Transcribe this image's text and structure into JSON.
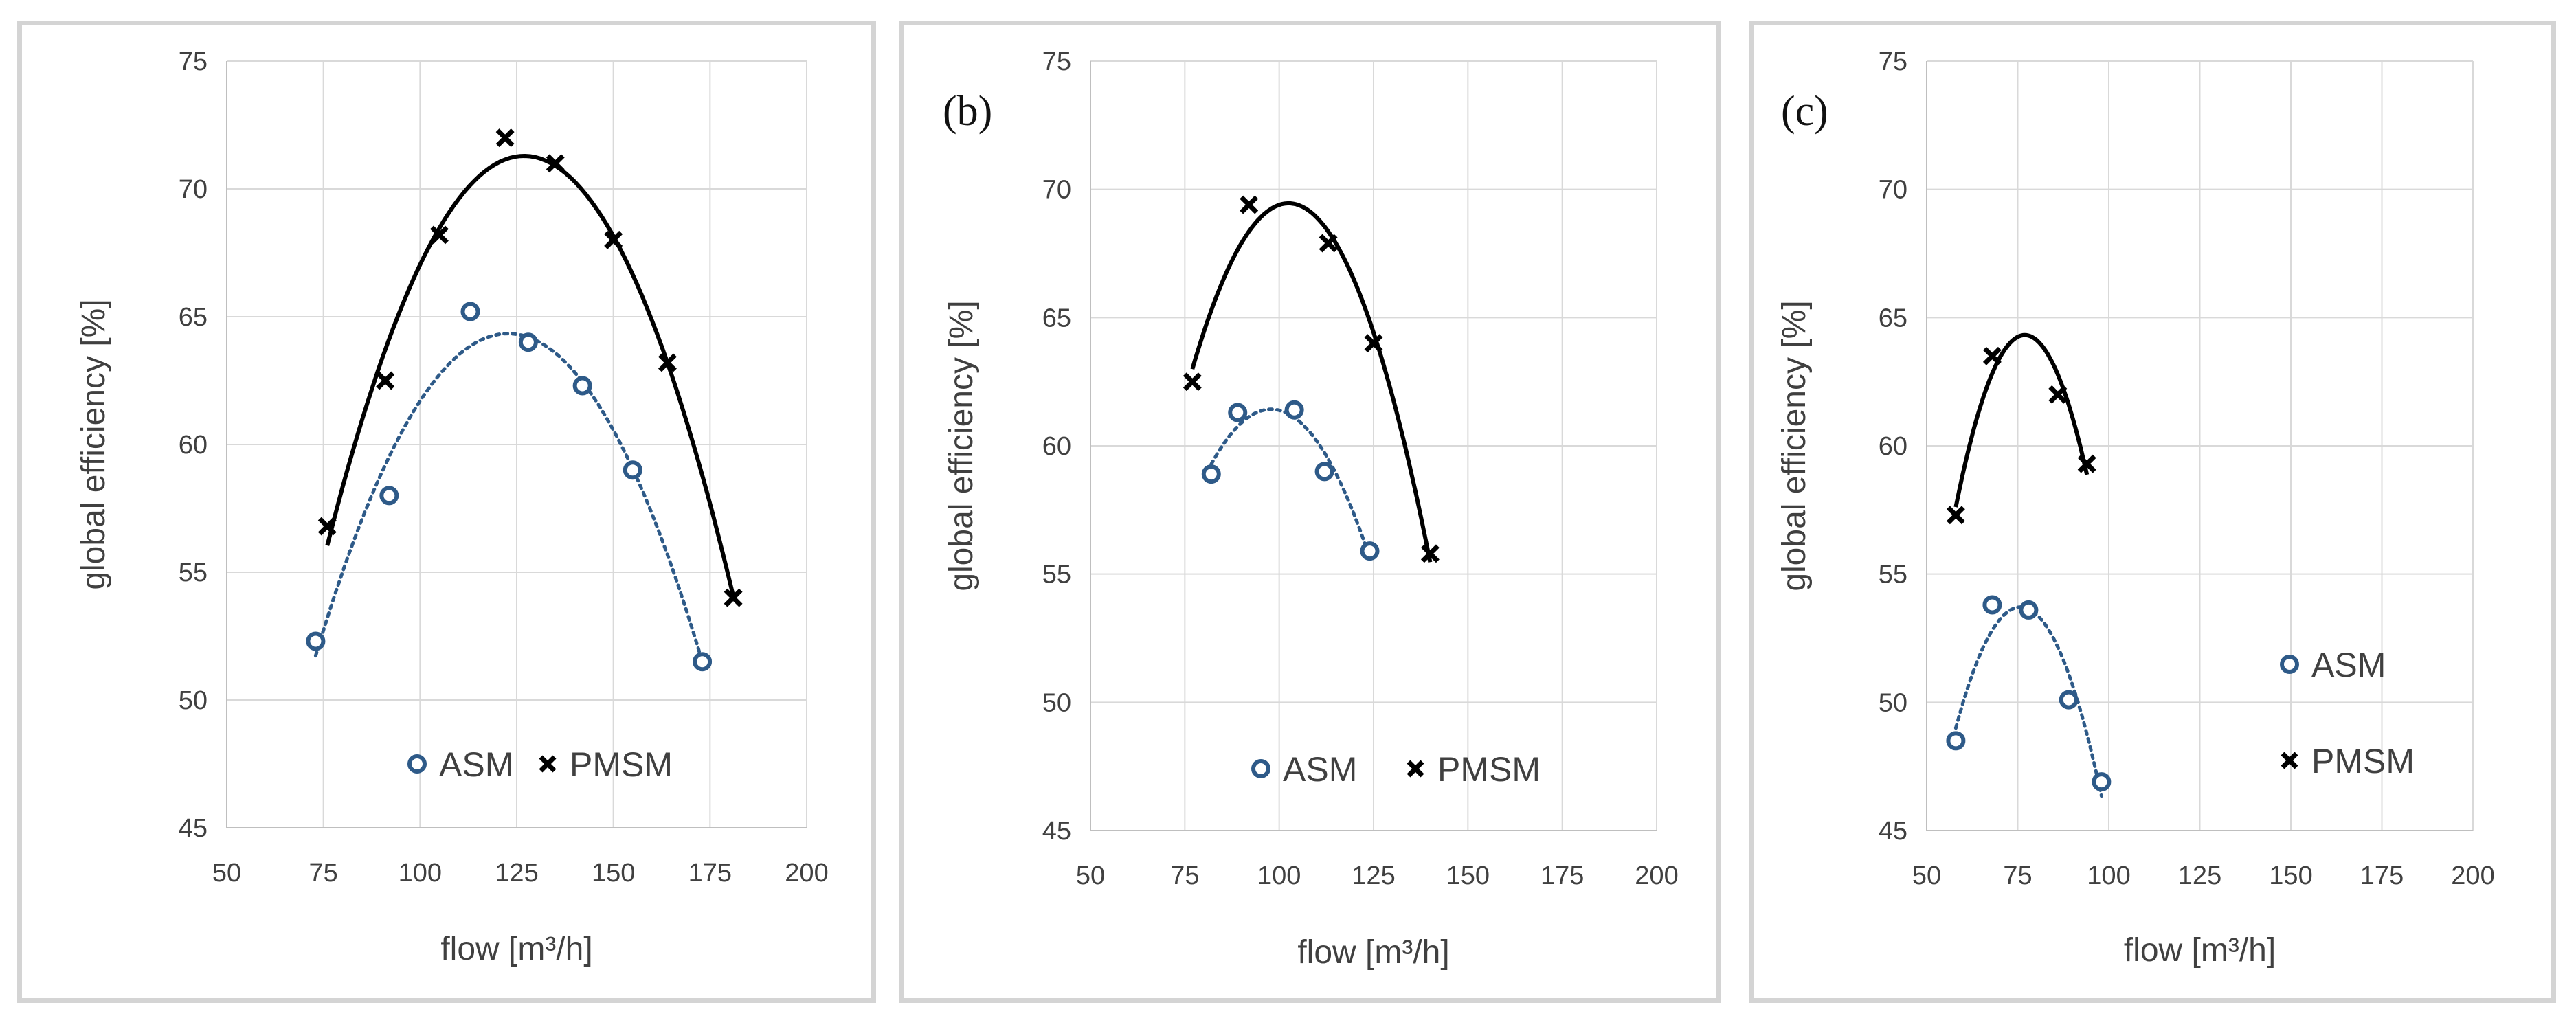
{
  "chart_data": [
    {
      "type": "scatter",
      "panel_label": "",
      "xlabel": "flow [m³/h]",
      "ylabel": "global efficiency [%]",
      "xlim": [
        50,
        200
      ],
      "ylim": [
        45,
        75
      ],
      "x_ticks": [
        "50",
        "75",
        "100",
        "125",
        "150",
        "175",
        "200"
      ],
      "y_ticks": [
        "45",
        "50",
        "55",
        "60",
        "65",
        "70",
        "75"
      ],
      "grid": true,
      "legend": {
        "placement": "bottom-center-row",
        "entries": [
          "ASM",
          "PMSM"
        ]
      },
      "series": [
        {
          "name": "ASM",
          "marker": "circle",
          "color": "#2e5a88",
          "trendline": "dotted",
          "points": [
            [
              73,
              52.3
            ],
            [
              92,
              58.0
            ],
            [
              113,
              65.2
            ],
            [
              128,
              64.0
            ],
            [
              142,
              62.3
            ],
            [
              155,
              59.0
            ],
            [
              173,
              51.5
            ]
          ]
        },
        {
          "name": "PMSM",
          "marker": "x",
          "color": "#000000",
          "trendline": "solid",
          "points": [
            [
              76,
              56.8
            ],
            [
              91,
              62.5
            ],
            [
              105,
              68.2
            ],
            [
              122,
              72.0
            ],
            [
              135,
              71.0
            ],
            [
              150,
              68.0
            ],
            [
              164,
              63.2
            ],
            [
              181,
              54.0
            ]
          ]
        }
      ]
    },
    {
      "type": "scatter",
      "panel_label": "(b)",
      "xlabel": "flow [m³/h]",
      "ylabel": "global efficiency [%]",
      "xlim": [
        50,
        200
      ],
      "ylim": [
        45,
        75
      ],
      "x_ticks": [
        "50",
        "75",
        "100",
        "125",
        "150",
        "175",
        "200"
      ],
      "y_ticks": [
        "45",
        "50",
        "55",
        "60",
        "65",
        "70",
        "75"
      ],
      "grid": true,
      "legend": {
        "placement": "bottom-center-row",
        "entries": [
          "ASM",
          "PMSM"
        ]
      },
      "series": [
        {
          "name": "ASM",
          "marker": "circle",
          "color": "#2e5a88",
          "trendline": "dotted",
          "points": [
            [
              82,
              58.9
            ],
            [
              89,
              61.3
            ],
            [
              104,
              61.4
            ],
            [
              112,
              59.0
            ],
            [
              124,
              55.9
            ]
          ]
        },
        {
          "name": "PMSM",
          "marker": "x",
          "color": "#000000",
          "trendline": "solid",
          "points": [
            [
              77,
              62.5
            ],
            [
              92,
              69.4
            ],
            [
              113,
              67.9
            ],
            [
              125,
              64.0
            ],
            [
              140,
              55.8
            ]
          ]
        }
      ]
    },
    {
      "type": "scatter",
      "panel_label": "(c)",
      "xlabel": "flow [m³/h]",
      "ylabel": "global efficiency [%]",
      "xlim": [
        50,
        200
      ],
      "ylim": [
        45,
        75
      ],
      "x_ticks": [
        "50",
        "75",
        "100",
        "125",
        "150",
        "175",
        "200"
      ],
      "y_ticks": [
        "45",
        "50",
        "55",
        "60",
        "65",
        "70",
        "75"
      ],
      "grid": true,
      "legend": {
        "placement": "right-column",
        "entries": [
          "ASM",
          "PMSM"
        ]
      },
      "series": [
        {
          "name": "ASM",
          "marker": "circle",
          "color": "#2e5a88",
          "trendline": "dotted",
          "points": [
            [
              58,
              48.5
            ],
            [
              68,
              53.8
            ],
            [
              78,
              53.6
            ],
            [
              89,
              50.1
            ],
            [
              98,
              46.9
            ]
          ]
        },
        {
          "name": "PMSM",
          "marker": "x",
          "color": "#000000",
          "trendline": "solid",
          "points": [
            [
              58,
              57.3
            ],
            [
              68,
              63.5
            ],
            [
              86,
              62.0
            ],
            [
              94,
              59.3
            ]
          ]
        }
      ]
    }
  ]
}
